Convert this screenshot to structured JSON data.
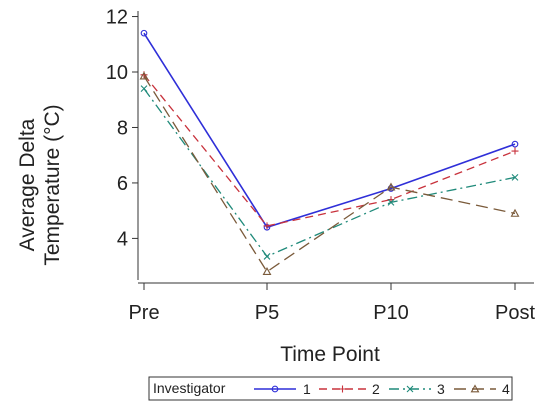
{
  "chart_data": {
    "type": "line",
    "xlabel": "Time Point",
    "ylabel": [
      "Average Delta",
      "Temperature (°C)"
    ],
    "categories": [
      "Pre",
      "P5",
      "P10",
      "Post"
    ],
    "ylim": [
      2.5,
      12.2
    ],
    "yticks": [
      4,
      6,
      8,
      10,
      12
    ],
    "grid": false,
    "legend": {
      "title": "Investigator",
      "placement": "bottom"
    },
    "series": [
      {
        "name": "1",
        "values": [
          11.4,
          4.4,
          5.8,
          7.4
        ],
        "color": "#2f2fd8",
        "marker": "circle",
        "dash": ""
      },
      {
        "name": "2",
        "values": [
          9.9,
          4.45,
          5.4,
          7.15
        ],
        "color": "#c8323c",
        "marker": "plus",
        "dash": "8,5"
      },
      {
        "name": "3",
        "values": [
          9.4,
          3.35,
          5.3,
          6.2
        ],
        "color": "#1f8a7a",
        "marker": "x",
        "dash": "10,4,2,4"
      },
      {
        "name": "4",
        "values": [
          9.85,
          2.8,
          5.85,
          4.9
        ],
        "color": "#7a5a3a",
        "marker": "triangle",
        "dash": "12,6"
      }
    ]
  }
}
